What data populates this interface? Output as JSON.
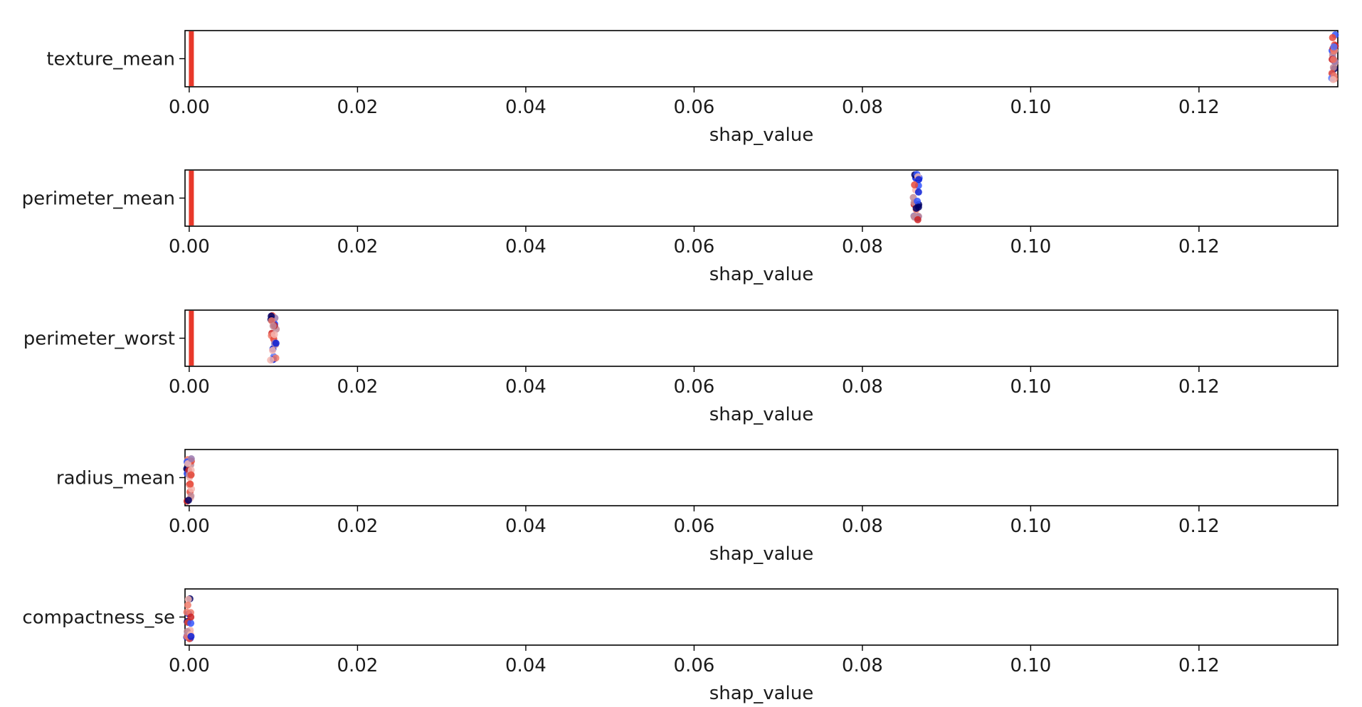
{
  "chart_data": {
    "type": "scatter",
    "x_label": "shap_value",
    "xlim": [
      -0.0005,
      0.1365
    ],
    "x_ticks": [
      0.0,
      0.02,
      0.04,
      0.06,
      0.08,
      0.1,
      0.12
    ],
    "x_tick_labels": [
      "0.00",
      "0.02",
      "0.04",
      "0.06",
      "0.08",
      "0.10",
      "0.12"
    ],
    "grid": false,
    "colors": {
      "baseline_line": "#e8382a",
      "point_palette": [
        "#000066",
        "#0a1fd6",
        "#3355ff",
        "#5577ff",
        "#cc2222",
        "#e84a3a",
        "#f07a6a",
        "#f4b6b0",
        "#9a7ab0",
        "#c28a98"
      ]
    },
    "panels": [
      {
        "feature": "texture_mean",
        "baseline": 0.0,
        "cluster_x": 0.1365,
        "point_count": 26,
        "spread": 0.00025
      },
      {
        "feature": "perimeter_mean",
        "baseline": 0.0,
        "cluster_x": 0.0864,
        "point_count": 24,
        "spread": 0.00035
      },
      {
        "feature": "perimeter_worst",
        "baseline": 0.0,
        "cluster_x": 0.01,
        "point_count": 26,
        "spread": 0.00035
      },
      {
        "feature": "radius_mean",
        "baseline": null,
        "cluster_x": 0.0,
        "point_count": 24,
        "spread": 0.0003
      },
      {
        "feature": "compactness_se",
        "baseline": null,
        "cluster_x": 0.0,
        "point_count": 24,
        "spread": 0.0003
      }
    ]
  }
}
